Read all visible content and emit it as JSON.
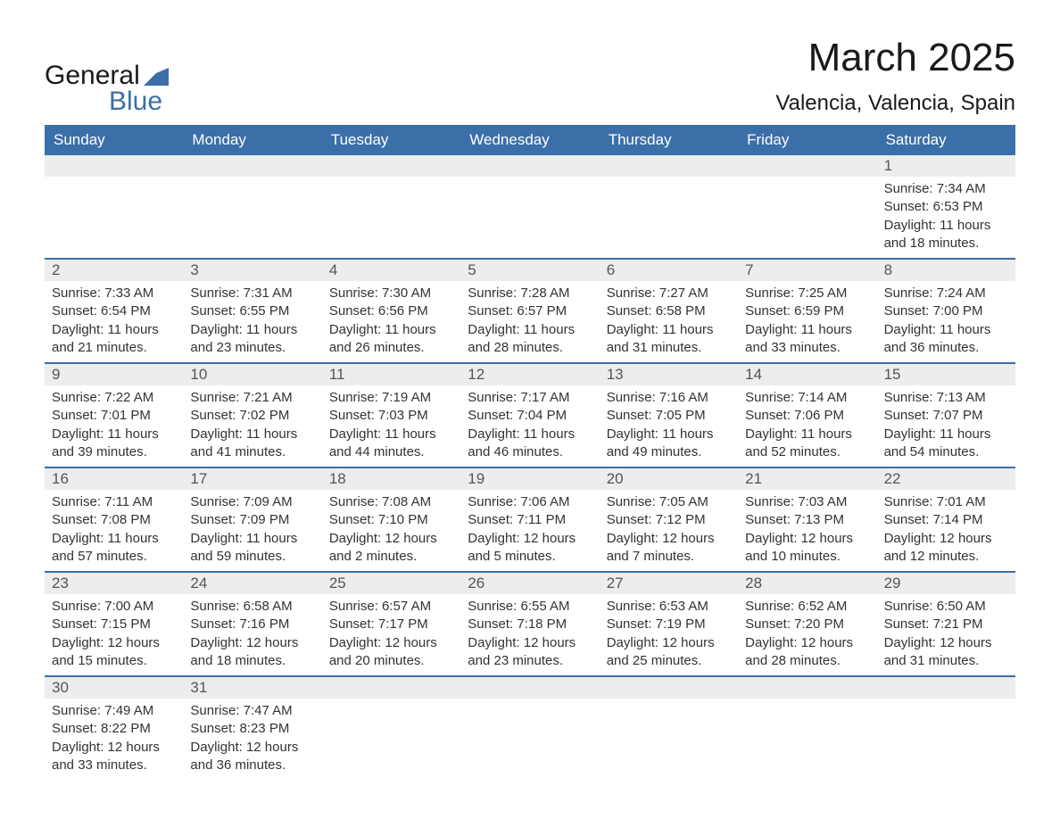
{
  "brand": {
    "word1": "General",
    "word2": "Blue",
    "flag_color": "#3b6fa8"
  },
  "title": "March 2025",
  "location": "Valencia, Valencia, Spain",
  "colors": {
    "header_bg": "#3b6fa8",
    "header_text": "#ffffff",
    "daynum_bg": "#eceded",
    "row_border": "#3b6fa8",
    "body_text": "#333333",
    "page_bg": "#ffffff"
  },
  "typography": {
    "title_fontsize": 44,
    "location_fontsize": 24,
    "weekday_fontsize": 17,
    "body_fontsize": 15
  },
  "weekdays": [
    "Sunday",
    "Monday",
    "Tuesday",
    "Wednesday",
    "Thursday",
    "Friday",
    "Saturday"
  ],
  "weeks": [
    [
      {
        "n": "",
        "sunrise": "",
        "sunset": "",
        "daylight": ""
      },
      {
        "n": "",
        "sunrise": "",
        "sunset": "",
        "daylight": ""
      },
      {
        "n": "",
        "sunrise": "",
        "sunset": "",
        "daylight": ""
      },
      {
        "n": "",
        "sunrise": "",
        "sunset": "",
        "daylight": ""
      },
      {
        "n": "",
        "sunrise": "",
        "sunset": "",
        "daylight": ""
      },
      {
        "n": "",
        "sunrise": "",
        "sunset": "",
        "daylight": ""
      },
      {
        "n": "1",
        "sunrise": "7:34 AM",
        "sunset": "6:53 PM",
        "daylight": "11 hours and 18 minutes."
      }
    ],
    [
      {
        "n": "2",
        "sunrise": "7:33 AM",
        "sunset": "6:54 PM",
        "daylight": "11 hours and 21 minutes."
      },
      {
        "n": "3",
        "sunrise": "7:31 AM",
        "sunset": "6:55 PM",
        "daylight": "11 hours and 23 minutes."
      },
      {
        "n": "4",
        "sunrise": "7:30 AM",
        "sunset": "6:56 PM",
        "daylight": "11 hours and 26 minutes."
      },
      {
        "n": "5",
        "sunrise": "7:28 AM",
        "sunset": "6:57 PM",
        "daylight": "11 hours and 28 minutes."
      },
      {
        "n": "6",
        "sunrise": "7:27 AM",
        "sunset": "6:58 PM",
        "daylight": "11 hours and 31 minutes."
      },
      {
        "n": "7",
        "sunrise": "7:25 AM",
        "sunset": "6:59 PM",
        "daylight": "11 hours and 33 minutes."
      },
      {
        "n": "8",
        "sunrise": "7:24 AM",
        "sunset": "7:00 PM",
        "daylight": "11 hours and 36 minutes."
      }
    ],
    [
      {
        "n": "9",
        "sunrise": "7:22 AM",
        "sunset": "7:01 PM",
        "daylight": "11 hours and 39 minutes."
      },
      {
        "n": "10",
        "sunrise": "7:21 AM",
        "sunset": "7:02 PM",
        "daylight": "11 hours and 41 minutes."
      },
      {
        "n": "11",
        "sunrise": "7:19 AM",
        "sunset": "7:03 PM",
        "daylight": "11 hours and 44 minutes."
      },
      {
        "n": "12",
        "sunrise": "7:17 AM",
        "sunset": "7:04 PM",
        "daylight": "11 hours and 46 minutes."
      },
      {
        "n": "13",
        "sunrise": "7:16 AM",
        "sunset": "7:05 PM",
        "daylight": "11 hours and 49 minutes."
      },
      {
        "n": "14",
        "sunrise": "7:14 AM",
        "sunset": "7:06 PM",
        "daylight": "11 hours and 52 minutes."
      },
      {
        "n": "15",
        "sunrise": "7:13 AM",
        "sunset": "7:07 PM",
        "daylight": "11 hours and 54 minutes."
      }
    ],
    [
      {
        "n": "16",
        "sunrise": "7:11 AM",
        "sunset": "7:08 PM",
        "daylight": "11 hours and 57 minutes."
      },
      {
        "n": "17",
        "sunrise": "7:09 AM",
        "sunset": "7:09 PM",
        "daylight": "11 hours and 59 minutes."
      },
      {
        "n": "18",
        "sunrise": "7:08 AM",
        "sunset": "7:10 PM",
        "daylight": "12 hours and 2 minutes."
      },
      {
        "n": "19",
        "sunrise": "7:06 AM",
        "sunset": "7:11 PM",
        "daylight": "12 hours and 5 minutes."
      },
      {
        "n": "20",
        "sunrise": "7:05 AM",
        "sunset": "7:12 PM",
        "daylight": "12 hours and 7 minutes."
      },
      {
        "n": "21",
        "sunrise": "7:03 AM",
        "sunset": "7:13 PM",
        "daylight": "12 hours and 10 minutes."
      },
      {
        "n": "22",
        "sunrise": "7:01 AM",
        "sunset": "7:14 PM",
        "daylight": "12 hours and 12 minutes."
      }
    ],
    [
      {
        "n": "23",
        "sunrise": "7:00 AM",
        "sunset": "7:15 PM",
        "daylight": "12 hours and 15 minutes."
      },
      {
        "n": "24",
        "sunrise": "6:58 AM",
        "sunset": "7:16 PM",
        "daylight": "12 hours and 18 minutes."
      },
      {
        "n": "25",
        "sunrise": "6:57 AM",
        "sunset": "7:17 PM",
        "daylight": "12 hours and 20 minutes."
      },
      {
        "n": "26",
        "sunrise": "6:55 AM",
        "sunset": "7:18 PM",
        "daylight": "12 hours and 23 minutes."
      },
      {
        "n": "27",
        "sunrise": "6:53 AM",
        "sunset": "7:19 PM",
        "daylight": "12 hours and 25 minutes."
      },
      {
        "n": "28",
        "sunrise": "6:52 AM",
        "sunset": "7:20 PM",
        "daylight": "12 hours and 28 minutes."
      },
      {
        "n": "29",
        "sunrise": "6:50 AM",
        "sunset": "7:21 PM",
        "daylight": "12 hours and 31 minutes."
      }
    ],
    [
      {
        "n": "30",
        "sunrise": "7:49 AM",
        "sunset": "8:22 PM",
        "daylight": "12 hours and 33 minutes."
      },
      {
        "n": "31",
        "sunrise": "7:47 AM",
        "sunset": "8:23 PM",
        "daylight": "12 hours and 36 minutes."
      },
      {
        "n": "",
        "sunrise": "",
        "sunset": "",
        "daylight": ""
      },
      {
        "n": "",
        "sunrise": "",
        "sunset": "",
        "daylight": ""
      },
      {
        "n": "",
        "sunrise": "",
        "sunset": "",
        "daylight": ""
      },
      {
        "n": "",
        "sunrise": "",
        "sunset": "",
        "daylight": ""
      },
      {
        "n": "",
        "sunrise": "",
        "sunset": "",
        "daylight": ""
      }
    ]
  ],
  "labels": {
    "sunrise": "Sunrise:",
    "sunset": "Sunset:",
    "daylight": "Daylight:"
  }
}
